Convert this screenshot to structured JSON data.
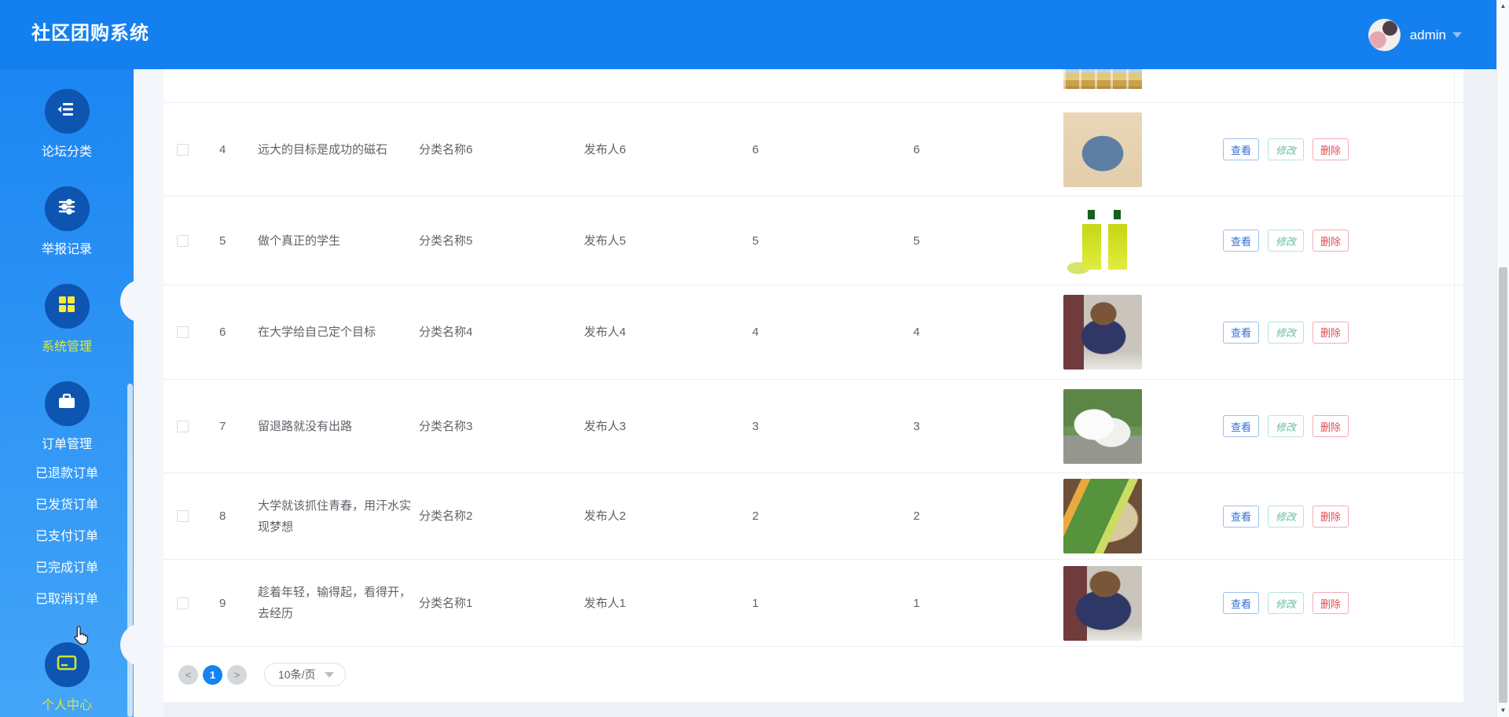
{
  "header": {
    "title": "社区团购系统",
    "user": {
      "name": "admin",
      "avatar": "user-avatar-photo"
    }
  },
  "sidebar": {
    "items": [
      {
        "label": "论坛分类",
        "icon": "forum-category-icon",
        "state": "normal"
      },
      {
        "label": "举报记录",
        "icon": "report-record-icon",
        "state": "normal"
      },
      {
        "label": "系统管理",
        "icon": "system-management-icon",
        "state": "active"
      },
      {
        "label": "订单管理",
        "icon": "order-management-icon",
        "state": "normal",
        "children": [
          {
            "label": "已退款订单"
          },
          {
            "label": "已发货订单"
          },
          {
            "label": "已支付订单"
          },
          {
            "label": "已完成订单"
          },
          {
            "label": "已取消订单"
          }
        ]
      },
      {
        "label": "个人中心",
        "icon": "personal-center-icon",
        "state": "hovered"
      }
    ]
  },
  "table": {
    "partial_row_image": "canned-products",
    "rows": [
      {
        "id": "4",
        "title": "远大的目标是成功的磁石",
        "category": "分类名称6",
        "publisher": "发布人6",
        "count1": "6",
        "count2": "6",
        "image": "denim-jacket"
      },
      {
        "id": "5",
        "title": "做个真正的学生",
        "category": "分类名称5",
        "publisher": "发布人5",
        "count1": "5",
        "count2": "5",
        "image": "oil-bottles"
      },
      {
        "id": "6",
        "title": "在大学给自己定个目标",
        "category": "分类名称4",
        "publisher": "发布人4",
        "count1": "4",
        "count2": "4",
        "image": "woman-navy-top"
      },
      {
        "id": "7",
        "title": "留退路就没有出路",
        "category": "分类名称3",
        "publisher": "发布人3",
        "count1": "3",
        "count2": "3",
        "image": "white-sneakers"
      },
      {
        "id": "8",
        "title": "大学就该抓住青春，用汗水实现梦想",
        "category": "分类名称2",
        "publisher": "发布人2",
        "count1": "2",
        "count2": "2",
        "image": "tool-kit"
      },
      {
        "id": "9",
        "title": "趁着年轻，输得起，看得开，去经历",
        "category": "分类名称1",
        "publisher": "发布人1",
        "count1": "1",
        "count2": "1",
        "image": "woman-navy-top-2"
      }
    ],
    "row_actions": {
      "view": "查看",
      "edit": "修改",
      "delete": "删除"
    }
  },
  "pagination": {
    "prev": "<",
    "current_page": "1",
    "next": ">",
    "page_size": "10条/页"
  },
  "colors": {
    "header_blue": "#1480f0",
    "sidebar_blue_top": "#1b86f2",
    "sidebar_blue_bottom": "#44a5f8",
    "icon_circle_blue": "#0d55b0",
    "active_item_yellow": "#dbe73b",
    "grid_icon_yellow": "#ffe93c",
    "view_button_blue": "#3370d4",
    "edit_button_green": "#63bfa4",
    "delete_button_red": "#e14b55",
    "pagination_active_blue": "#1583f2"
  }
}
